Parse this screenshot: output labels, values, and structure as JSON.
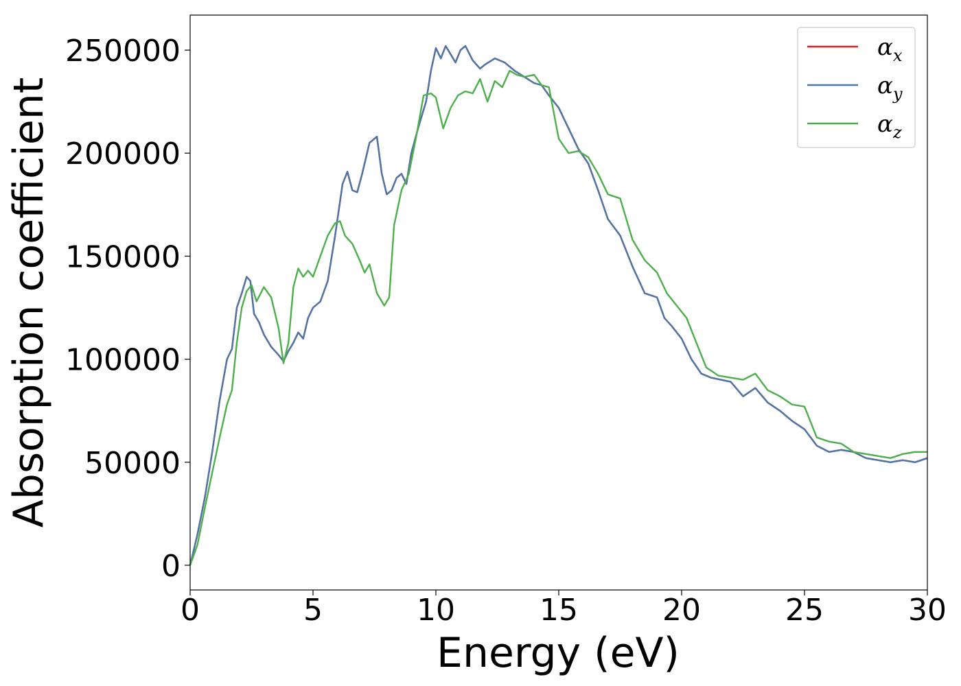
{
  "chart_data": {
    "type": "line",
    "xlabel": "Energy (eV)",
    "ylabel": "Absorption coefficient",
    "xlim": [
      0,
      30
    ],
    "ylim": [
      -12000,
      267000
    ],
    "xticks": [
      0,
      5,
      10,
      15,
      20,
      25,
      30
    ],
    "xtick_labels": [
      "0",
      "5",
      "10",
      "15",
      "20",
      "25",
      "30"
    ],
    "yticks": [
      0,
      50000,
      100000,
      150000,
      200000,
      250000
    ],
    "ytick_labels": [
      "0",
      "50000",
      "100000",
      "150000",
      "200000",
      "250000"
    ],
    "grid": false,
    "legend_position": "top-right",
    "series": [
      {
        "name": "α",
        "subscript": "x",
        "color": "#e41a1c",
        "x": [
          0,
          0.3,
          0.6,
          0.9,
          1.2,
          1.5,
          1.7,
          1.9,
          2.1,
          2.3,
          2.45,
          2.6,
          2.8,
          3.0,
          3.3,
          3.6,
          3.8,
          4.0,
          4.2,
          4.4,
          4.6,
          4.8,
          5.0,
          5.3,
          5.6,
          5.9,
          6.2,
          6.4,
          6.6,
          6.8,
          7.0,
          7.3,
          7.6,
          7.8,
          8.0,
          8.2,
          8.4,
          8.6,
          8.8,
          9.0,
          9.3,
          9.6,
          9.8,
          10.0,
          10.2,
          10.4,
          10.6,
          10.8,
          11.0,
          11.2,
          11.5,
          11.8,
          12.0,
          12.4,
          12.8,
          13.2,
          13.6,
          14.0,
          14.3,
          14.6,
          15.0,
          15.4,
          15.8,
          16.2,
          16.6,
          17.0,
          17.5,
          18.0,
          18.5,
          19.0,
          19.3,
          19.6,
          20.0,
          20.4,
          20.8,
          21.2,
          21.6,
          22.0,
          22.5,
          23.0,
          23.5,
          24.0,
          24.5,
          25.0,
          25.5,
          26.0,
          26.5,
          27.0,
          27.5,
          28.0,
          28.5,
          29.0,
          29.5,
          30.0
        ],
        "y": [
          0,
          15000,
          33000,
          55000,
          80000,
          100000,
          105000,
          125000,
          132000,
          140000,
          138000,
          122000,
          118000,
          112000,
          106000,
          102000,
          99000,
          104000,
          108000,
          113000,
          110000,
          120000,
          125000,
          128000,
          138000,
          160000,
          185000,
          191000,
          182000,
          181000,
          190000,
          205000,
          208000,
          190000,
          180000,
          182000,
          188000,
          190000,
          185000,
          200000,
          213000,
          225000,
          240000,
          251000,
          246000,
          252000,
          248000,
          244000,
          250000,
          252000,
          245000,
          241000,
          243000,
          246000,
          244000,
          240000,
          237000,
          234000,
          233000,
          228000,
          222000,
          212000,
          202000,
          195000,
          182000,
          168000,
          160000,
          145000,
          132000,
          130000,
          120000,
          116000,
          110000,
          100000,
          93000,
          91000,
          90000,
          89000,
          82000,
          86000,
          79000,
          75000,
          70000,
          66000,
          58000,
          55000,
          56000,
          55000,
          52000,
          51000,
          50000,
          51000,
          50000,
          52000
        ]
      },
      {
        "name": "α",
        "subscript": "y",
        "color": "#4a76aa",
        "x": [
          0,
          0.3,
          0.6,
          0.9,
          1.2,
          1.5,
          1.7,
          1.9,
          2.1,
          2.3,
          2.45,
          2.6,
          2.8,
          3.0,
          3.3,
          3.6,
          3.8,
          4.0,
          4.2,
          4.4,
          4.6,
          4.8,
          5.0,
          5.3,
          5.6,
          5.9,
          6.2,
          6.4,
          6.6,
          6.8,
          7.0,
          7.3,
          7.6,
          7.8,
          8.0,
          8.2,
          8.4,
          8.6,
          8.8,
          9.0,
          9.3,
          9.6,
          9.8,
          10.0,
          10.2,
          10.4,
          10.6,
          10.8,
          11.0,
          11.2,
          11.5,
          11.8,
          12.0,
          12.4,
          12.8,
          13.2,
          13.6,
          14.0,
          14.3,
          14.6,
          15.0,
          15.4,
          15.8,
          16.2,
          16.6,
          17.0,
          17.5,
          18.0,
          18.5,
          19.0,
          19.3,
          19.6,
          20.0,
          20.4,
          20.8,
          21.2,
          21.6,
          22.0,
          22.5,
          23.0,
          23.5,
          24.0,
          24.5,
          25.0,
          25.5,
          26.0,
          26.5,
          27.0,
          27.5,
          28.0,
          28.5,
          29.0,
          29.5,
          30.0
        ],
        "y": [
          0,
          15000,
          33000,
          55000,
          80000,
          100000,
          105000,
          125000,
          132000,
          140000,
          138000,
          122000,
          118000,
          112000,
          106000,
          102000,
          99000,
          104000,
          108000,
          113000,
          110000,
          120000,
          125000,
          128000,
          138000,
          160000,
          185000,
          191000,
          182000,
          181000,
          190000,
          205000,
          208000,
          190000,
          180000,
          182000,
          188000,
          190000,
          185000,
          200000,
          213000,
          225000,
          240000,
          251000,
          246000,
          252000,
          248000,
          244000,
          250000,
          252000,
          245000,
          241000,
          243000,
          246000,
          244000,
          240000,
          237000,
          234000,
          233000,
          228000,
          222000,
          212000,
          202000,
          195000,
          182000,
          168000,
          160000,
          145000,
          132000,
          130000,
          120000,
          116000,
          110000,
          100000,
          93000,
          91000,
          90000,
          89000,
          82000,
          86000,
          79000,
          75000,
          70000,
          66000,
          58000,
          55000,
          56000,
          55000,
          52000,
          51000,
          50000,
          51000,
          50000,
          52000
        ]
      },
      {
        "name": "α",
        "subscript": "z",
        "color": "#4daf4a",
        "x": [
          0,
          0.3,
          0.6,
          0.9,
          1.2,
          1.5,
          1.7,
          1.9,
          2.1,
          2.3,
          2.5,
          2.7,
          3.0,
          3.3,
          3.6,
          3.8,
          4.0,
          4.2,
          4.4,
          4.6,
          4.8,
          5.0,
          5.3,
          5.6,
          5.9,
          6.1,
          6.3,
          6.6,
          6.9,
          7.1,
          7.3,
          7.6,
          7.9,
          8.1,
          8.3,
          8.6,
          8.9,
          9.2,
          9.5,
          9.8,
          10.0,
          10.3,
          10.6,
          10.9,
          11.2,
          11.5,
          11.8,
          12.1,
          12.4,
          12.7,
          13.0,
          13.3,
          13.6,
          14.0,
          14.3,
          14.6,
          15.0,
          15.4,
          15.8,
          16.2,
          16.6,
          17.0,
          17.5,
          18.0,
          18.5,
          19.0,
          19.4,
          19.8,
          20.2,
          20.6,
          21.0,
          21.5,
          22.0,
          22.5,
          23.0,
          23.5,
          24.0,
          24.5,
          25.0,
          25.5,
          26.0,
          26.5,
          27.0,
          27.5,
          28.0,
          28.5,
          29.0,
          29.5,
          30.0
        ],
        "y": [
          0,
          10000,
          28000,
          45000,
          62000,
          78000,
          85000,
          108000,
          125000,
          133000,
          136000,
          128000,
          135000,
          130000,
          115000,
          98000,
          108000,
          135000,
          144000,
          140000,
          143000,
          140000,
          150000,
          160000,
          166000,
          167000,
          160000,
          156000,
          148000,
          142000,
          146000,
          132000,
          126000,
          130000,
          165000,
          182000,
          190000,
          208000,
          228000,
          229000,
          227000,
          212000,
          222000,
          228000,
          230000,
          229000,
          236000,
          225000,
          235000,
          232000,
          240000,
          238000,
          237000,
          238000,
          233000,
          232000,
          207000,
          200000,
          201000,
          198000,
          190000,
          180000,
          178000,
          158000,
          148000,
          142000,
          132000,
          126000,
          120000,
          108000,
          96000,
          92000,
          91000,
          90000,
          93000,
          85000,
          82000,
          78000,
          77000,
          62000,
          60000,
          59000,
          55000,
          54000,
          53000,
          52000,
          54000,
          55000,
          55000
        ]
      }
    ]
  }
}
